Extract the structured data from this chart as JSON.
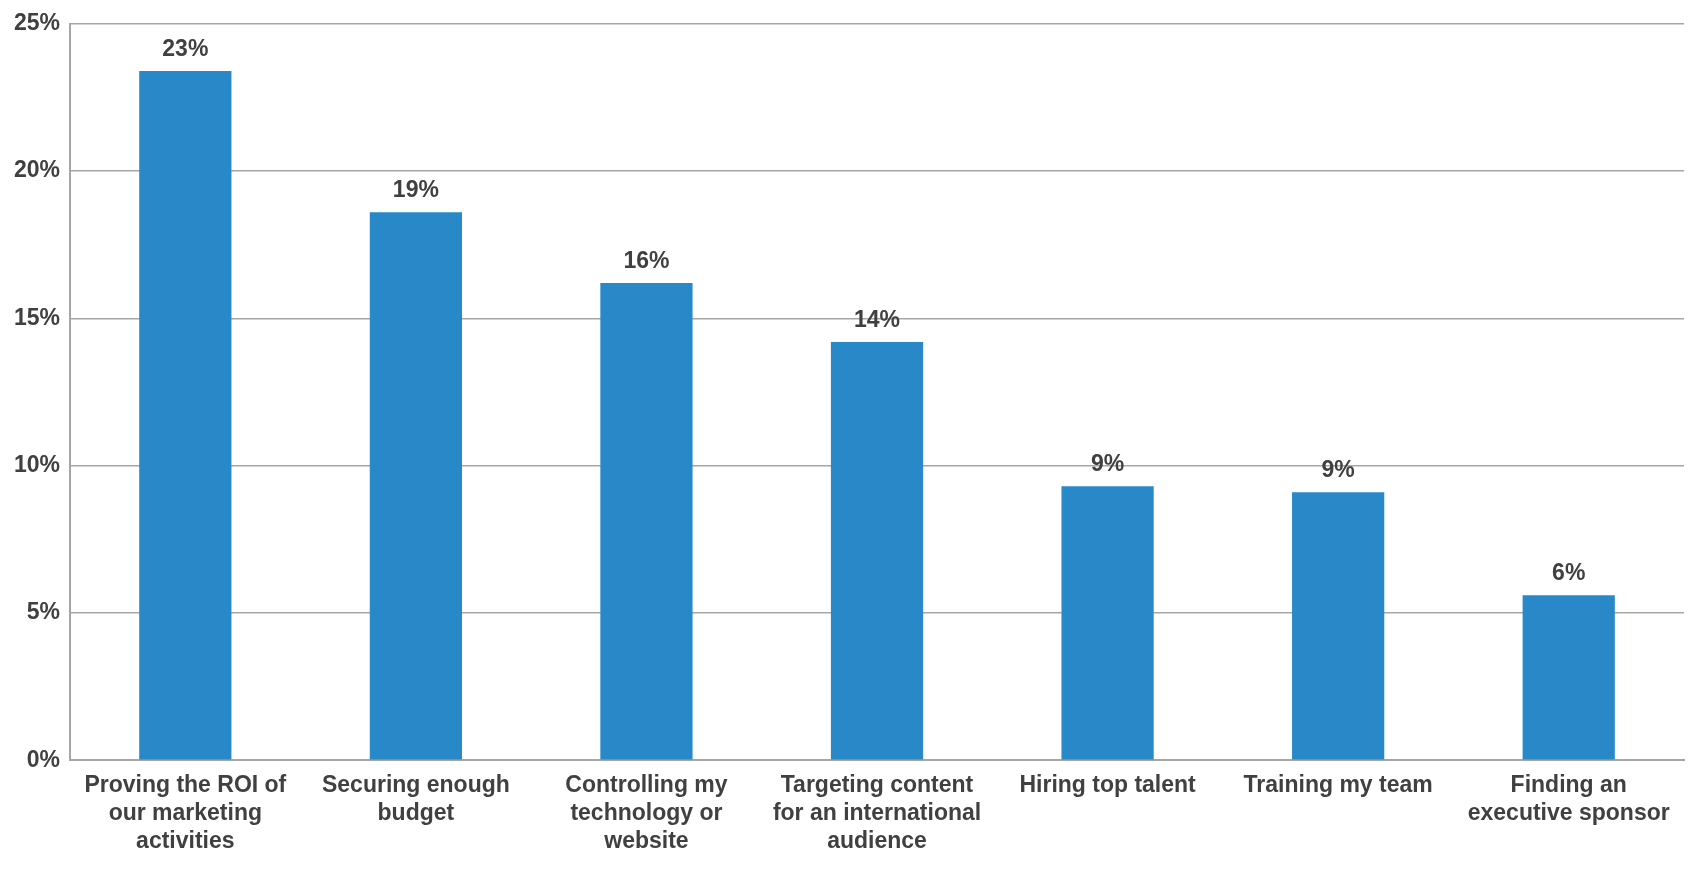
{
  "chart_data": {
    "type": "bar",
    "categories": [
      "Proving the ROI of our marketing activities",
      "Securing enough budget",
      "Controlling my technology or website",
      "Targeting content for an international audience",
      "Hiring top talent",
      "Training my team",
      "Finding an executive sponsor"
    ],
    "values": [
      23.4,
      18.6,
      16.2,
      14.2,
      9.3,
      9.1,
      5.6
    ],
    "value_labels": [
      "23%",
      "19%",
      "16%",
      "14%",
      "9%",
      "9%",
      "6%"
    ],
    "color": "#2989c8",
    "ylim": [
      0,
      25
    ],
    "yticks": [
      {
        "value": 0,
        "label": "0%"
      },
      {
        "value": 5,
        "label": "5%"
      },
      {
        "value": 10,
        "label": "10%"
      },
      {
        "value": 15,
        "label": "15%"
      },
      {
        "value": 20,
        "label": "20%"
      },
      {
        "value": 25,
        "label": "25%"
      }
    ],
    "grid": "y",
    "legend": false
  }
}
